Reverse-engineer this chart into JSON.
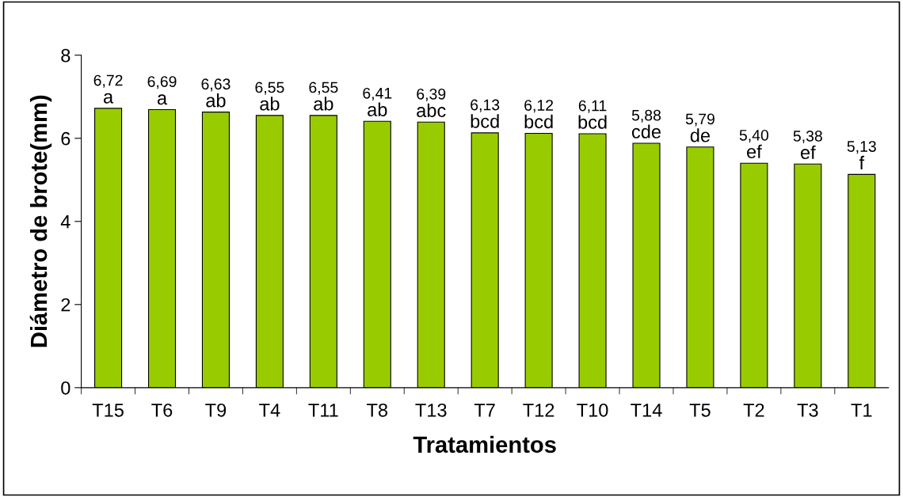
{
  "chart_data": {
    "type": "bar",
    "xlabel": "Tratamientos",
    "ylabel": "Diámetro de brote(mm)",
    "categories": [
      "T15",
      "T6",
      "T9",
      "T4",
      "T11",
      "T8",
      "T13",
      "T7",
      "T12",
      "T10",
      "T14",
      "T5",
      "T2",
      "T3",
      "T1"
    ],
    "values": [
      6.72,
      6.69,
      6.63,
      6.55,
      6.55,
      6.41,
      6.39,
      6.13,
      6.12,
      6.11,
      5.88,
      5.79,
      5.4,
      5.38,
      5.13
    ],
    "value_labels": [
      "6,72",
      "6,69",
      "6,63",
      "6,55",
      "6,55",
      "6,41",
      "6,39",
      "6,13",
      "6,12",
      "6,11",
      "5,88",
      "5,79",
      "5,40",
      "5,38",
      "5,13"
    ],
    "color": "#99cc00",
    "annotations": [
      {
        "text": "a",
        "x": "T15",
        "y": 6.72
      },
      {
        "text": "a",
        "x": "T6",
        "y": 6.69
      },
      {
        "text": "ab",
        "x": "T9",
        "y": 6.63
      },
      {
        "text": "ab",
        "x": "T4",
        "y": 6.55
      },
      {
        "text": "ab",
        "x": "T11",
        "y": 6.55
      },
      {
        "text": "ab",
        "x": "T8",
        "y": 6.41
      },
      {
        "text": "abc",
        "x": "T13",
        "y": 6.39
      },
      {
        "text": "bcd",
        "x": "T7",
        "y": 6.13
      },
      {
        "text": "bcd",
        "x": "T12",
        "y": 6.12
      },
      {
        "text": "bcd",
        "x": "T10",
        "y": 6.11
      },
      {
        "text": "cde",
        "x": "T14",
        "y": 5.88
      },
      {
        "text": "de",
        "x": "T5",
        "y": 5.79
      },
      {
        "text": "ef",
        "x": "T2",
        "y": 5.4
      },
      {
        "text": "ef",
        "x": "T3",
        "y": 5.38
      },
      {
        "text": "f",
        "x": "T1",
        "y": 5.13
      }
    ],
    "ylim": [
      0,
      8
    ],
    "yticks": [
      0,
      2,
      4,
      6,
      8
    ],
    "grid": false,
    "legend": false
  }
}
